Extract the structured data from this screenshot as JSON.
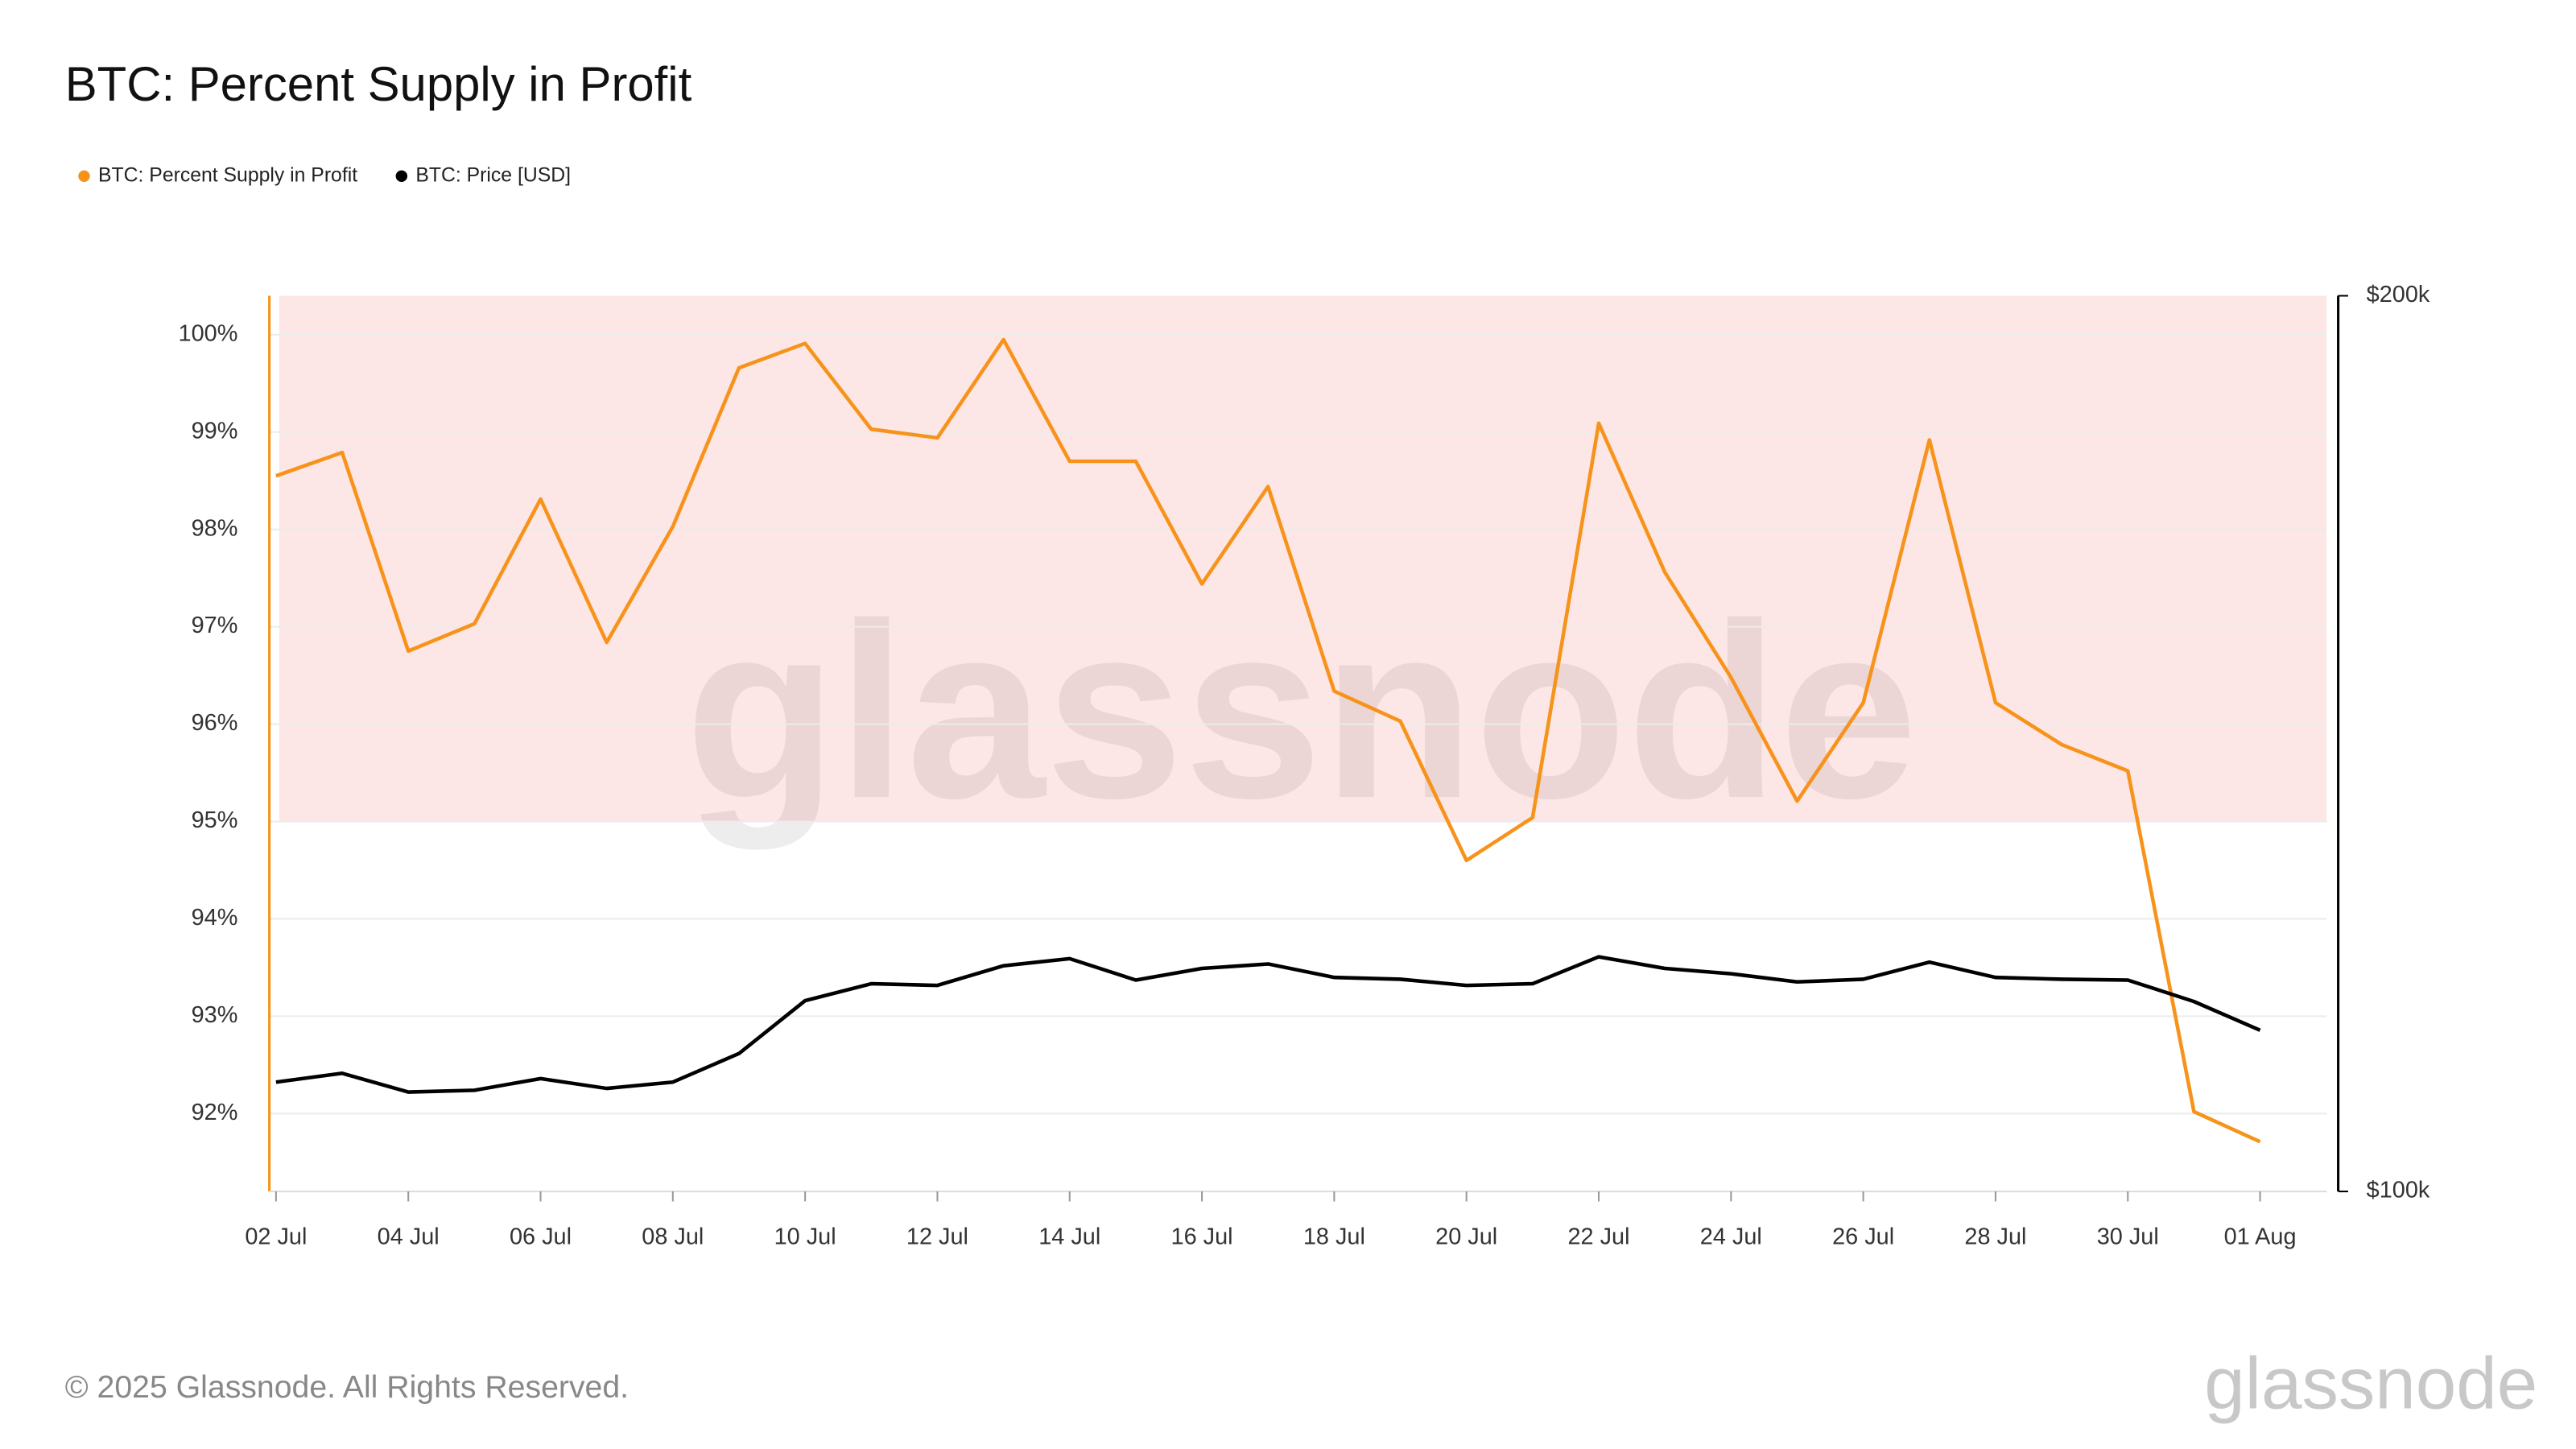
{
  "chart_data": {
    "type": "line",
    "title": "BTC: Percent Supply in Profit",
    "footer": "© 2025 Glassnode. All Rights Reserved.",
    "watermark": "glassnode",
    "brand": "glassnode",
    "categories": [
      "02 Jul",
      null,
      "04 Jul",
      null,
      "06 Jul",
      null,
      "08 Jul",
      null,
      "10 Jul",
      null,
      "12 Jul",
      null,
      "14 Jul",
      null,
      "16 Jul",
      null,
      "18 Jul",
      null,
      "20 Jul",
      null,
      "22 Jul",
      null,
      "24 Jul",
      null,
      "26 Jul",
      null,
      "28 Jul",
      null,
      "30 Jul",
      null,
      "01 Aug"
    ],
    "series": [
      {
        "name": "BTC: Percent Supply in Profit",
        "color": "#f7931a",
        "axis": "y",
        "values": [
          98.55,
          98.79,
          96.75,
          97.03,
          98.31,
          96.84,
          98.03,
          99.66,
          99.91,
          99.03,
          98.94,
          99.95,
          98.7,
          98.7,
          97.44,
          98.44,
          96.34,
          96.03,
          94.6,
          95.04,
          99.09,
          97.56,
          96.48,
          95.21,
          96.22,
          98.92,
          96.22,
          95.79,
          95.52,
          92.02,
          91.71
        ]
      },
      {
        "name": "BTC: Price [USD]",
        "color": "#000000",
        "axis": "y2",
        "values": [
          112200,
          113200,
          111100,
          111300,
          112600,
          111500,
          112200,
          115400,
          121300,
          123200,
          123000,
          125200,
          126000,
          123600,
          124900,
          125400,
          123900,
          123700,
          123000,
          123200,
          126200,
          124900,
          124300,
          123400,
          123700,
          125600,
          123900,
          123700,
          123600,
          121200,
          118000
        ]
      }
    ],
    "ylim": [
      91.2,
      100.4
    ],
    "yticks": [
      {
        "value": 92,
        "label": "92%"
      },
      {
        "value": 93,
        "label": "93%"
      },
      {
        "value": 94,
        "label": "94%"
      },
      {
        "value": 95,
        "label": "95%"
      },
      {
        "value": 96,
        "label": "96%"
      },
      {
        "value": 97,
        "label": "97%"
      },
      {
        "value": 98,
        "label": "98%"
      },
      {
        "value": 99,
        "label": "99%"
      },
      {
        "value": 100,
        "label": "100%"
      }
    ],
    "y2lim": [
      100000,
      200000
    ],
    "y2ticks": [
      {
        "value": 100000,
        "label": "$100k"
      },
      {
        "value": 200000,
        "label": "$200k"
      }
    ],
    "highlight": {
      "from": 95,
      "to": 100.4,
      "color": "#fde6e6"
    },
    "grid": true,
    "legend": "top-left"
  }
}
